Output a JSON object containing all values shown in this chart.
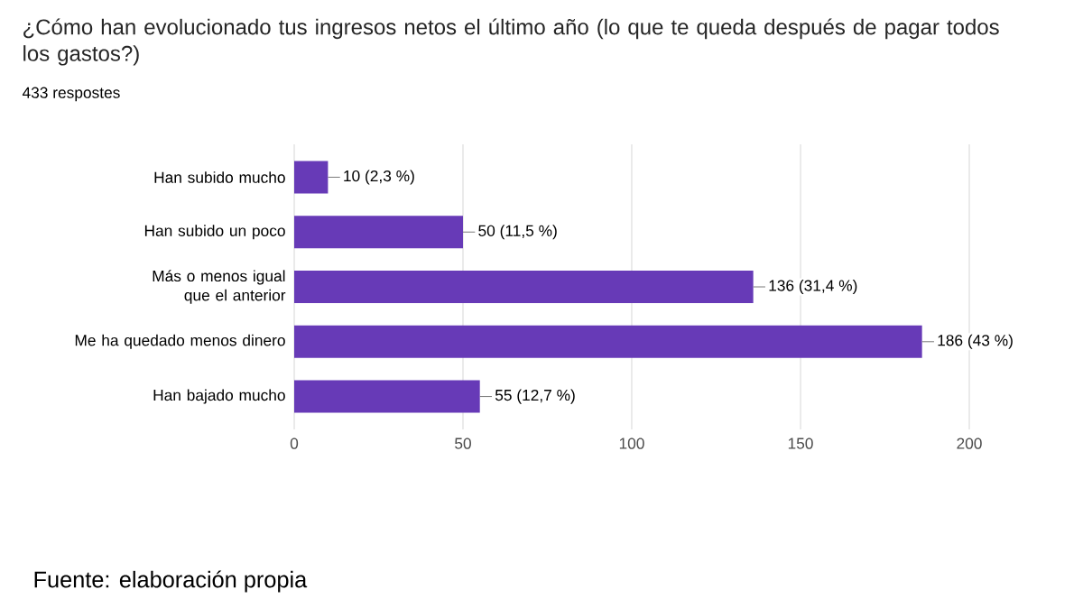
{
  "chart_data": {
    "type": "bar",
    "orientation": "horizontal",
    "title": "¿Cómo han evolucionado tus ingresos netos el último año (lo que te queda después de pagar todos los gastos?)",
    "subtitle": "433 respostes",
    "categories": [
      "Han subido mucho",
      "Han subido un poco",
      "Más o menos igual que el anterior",
      "Me ha quedado menos dinero",
      "Han bajado mucho"
    ],
    "values": [
      10,
      50,
      136,
      186,
      55
    ],
    "value_labels": [
      "10 (2,3 %)",
      "50 (11,5 %)",
      "136 (31,4 %)",
      "186 (43 %)",
      "55 (12,7 %)"
    ],
    "color": "#673ab7",
    "xlim": [
      0,
      200
    ],
    "xticks": [
      0,
      50,
      100,
      150,
      200
    ],
    "grid": "x",
    "annotations": [
      "Fuente: elaboración propia"
    ]
  }
}
